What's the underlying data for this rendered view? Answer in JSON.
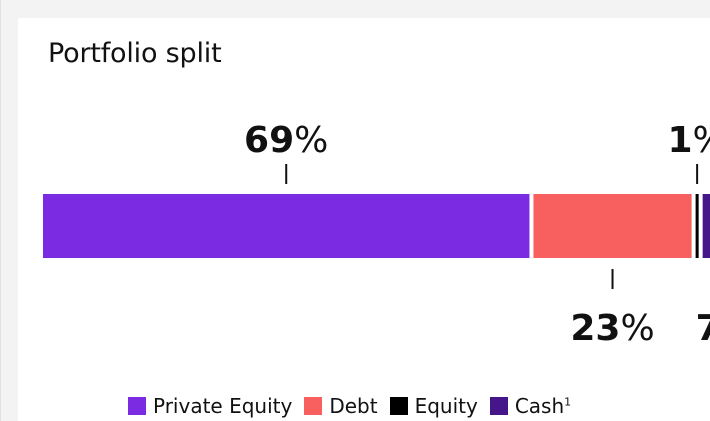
{
  "chart_data": {
    "type": "bar",
    "orientation": "horizontal-stacked",
    "title": "Portfolio split",
    "categories": [
      "Private Equity",
      "Debt",
      "Equity",
      "Cash"
    ],
    "values": [
      69,
      23,
      1,
      7
    ],
    "value_labels": [
      "69",
      "23",
      "1",
      "7"
    ],
    "unit": "%",
    "label_positions": [
      "above",
      "below",
      "above",
      "below"
    ],
    "colors": [
      "#7b2be2",
      "#f85f5f",
      "#000000",
      "#44168a"
    ],
    "legend": {
      "position": "bottom",
      "entries": [
        {
          "label": "Private Equity",
          "sup": ""
        },
        {
          "label": "Debt",
          "sup": ""
        },
        {
          "label": "Equity",
          "sup": ""
        },
        {
          "label": "Cash",
          "sup": "1"
        }
      ]
    }
  }
}
